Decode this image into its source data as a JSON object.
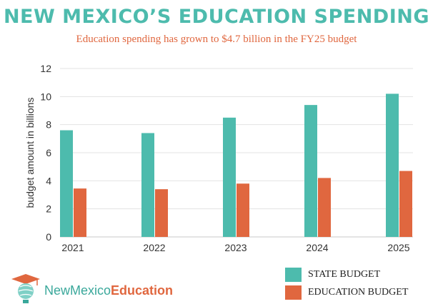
{
  "header": {
    "title": "NEW MEXICO’S EDUCATION SPENDING",
    "subtitle": "Education spending has grown to $4.7 billion in the FY25 budget"
  },
  "logo": {
    "name_regular": "NewMexico",
    "name_bold": "Education"
  },
  "colors": {
    "state": "#4dbbad",
    "education": "#e0673f",
    "title": "#4dbbad",
    "grid": "#e3e3e3"
  },
  "chart_data": {
    "type": "bar",
    "title": "NEW MEXICO’S EDUCATION SPENDING",
    "subtitle": "Education spending has grown to $4.7 billion in the FY25 budget",
    "xlabel": "",
    "ylabel": "budget amount in billions",
    "ylim": [
      0,
      12
    ],
    "yticks": [
      0,
      2,
      4,
      6,
      8,
      10,
      12
    ],
    "grid": true,
    "legend_position": "bottom-right",
    "categories": [
      "2021",
      "2022",
      "2023",
      "2024",
      "2025"
    ],
    "series": [
      {
        "name": "STATE BUDGET",
        "values": [
          7.6,
          7.4,
          8.5,
          9.4,
          10.2
        ]
      },
      {
        "name": "EDUCATION BUDGET",
        "values": [
          3.45,
          3.4,
          3.8,
          4.2,
          4.7
        ]
      }
    ]
  }
}
